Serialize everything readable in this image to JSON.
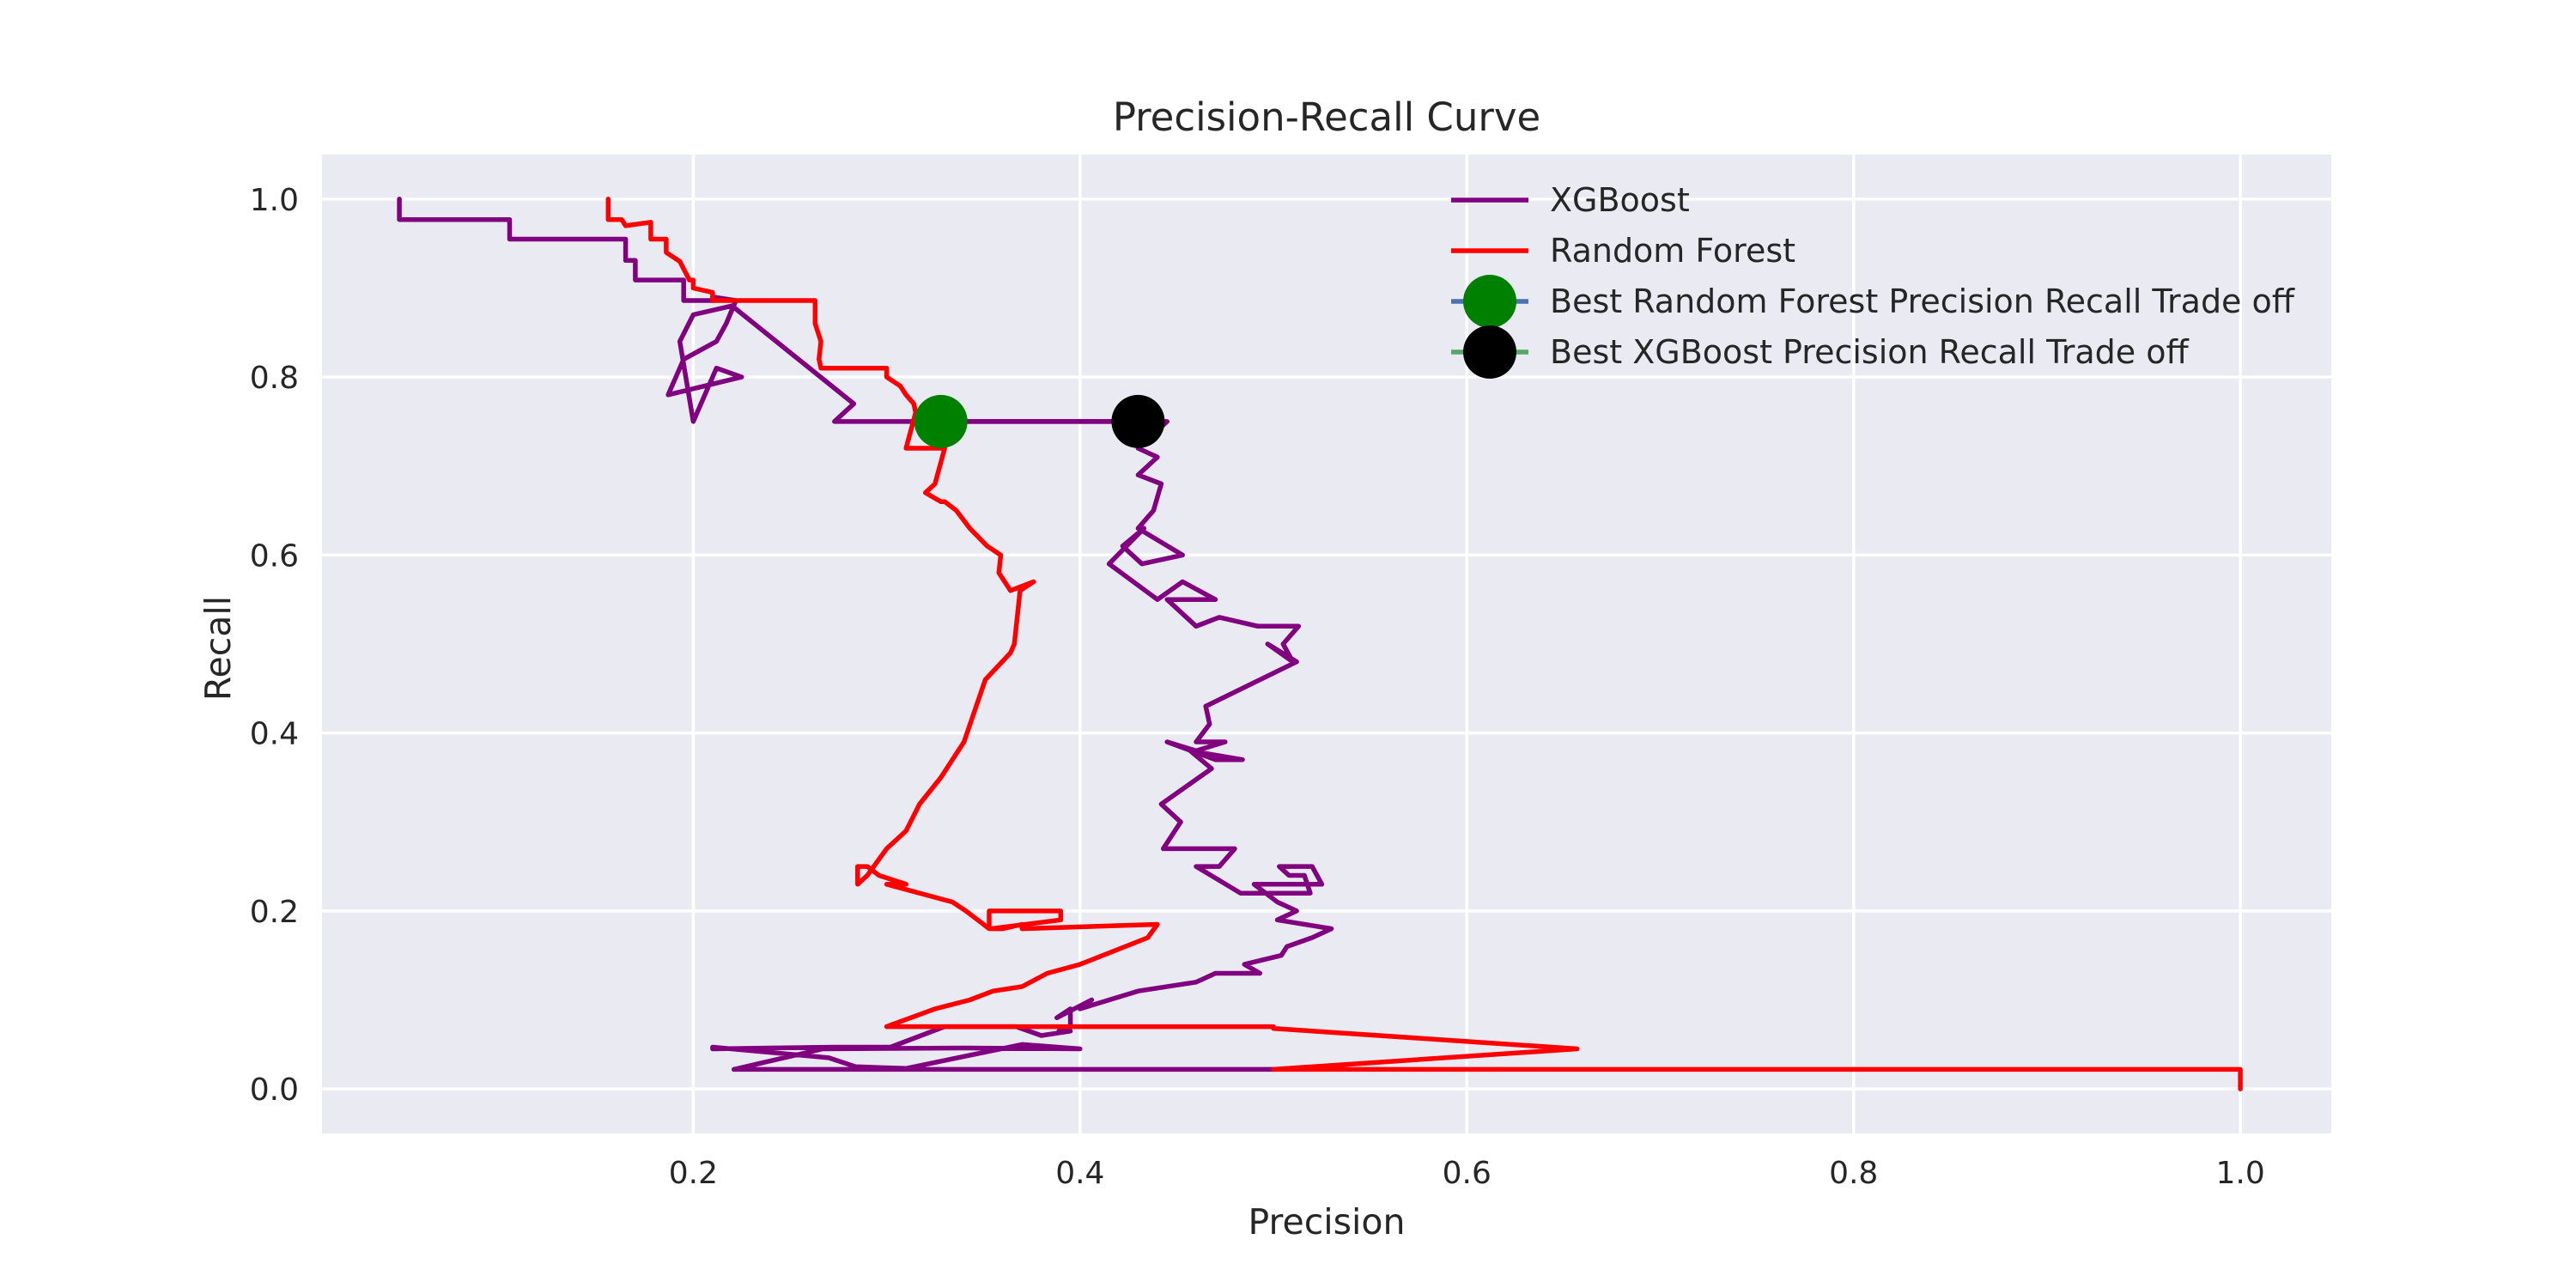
{
  "chart_data": {
    "type": "line",
    "title": "Precision-Recall Curve",
    "xlabel": "Precision",
    "ylabel": "Recall",
    "xlim": [
      0.008,
      1.047
    ],
    "ylim": [
      -0.05,
      1.05
    ],
    "xticks": [
      0.2,
      0.4,
      0.6,
      0.8,
      1.0
    ],
    "xtick_labels": [
      "0.2",
      "0.4",
      "0.6",
      "0.8",
      "1.0"
    ],
    "yticks": [
      0.0,
      0.2,
      0.4,
      0.6,
      0.8,
      1.0
    ],
    "ytick_labels": [
      "0.0",
      "0.2",
      "0.4",
      "0.6",
      "0.8",
      "1.0"
    ],
    "grid": true,
    "legend_position": "top-right",
    "background": "#eaeaf2",
    "series": [
      {
        "name": "XGBoost",
        "color": "#800080",
        "x": [
          0.048,
          0.048,
          0.105,
          0.105,
          0.165,
          0.165,
          0.17,
          0.17,
          0.195,
          0.195,
          0.21,
          0.21,
          0.222,
          0.217,
          0.212,
          0.195,
          0.187,
          0.225,
          0.212,
          0.2,
          0.193,
          0.2,
          0.22,
          0.283,
          0.273,
          0.43,
          0.445,
          0.43,
          0.44,
          0.43,
          0.442,
          0.438,
          0.43,
          0.453,
          0.432,
          0.422,
          0.433,
          0.415,
          0.44,
          0.453,
          0.47,
          0.445,
          0.46,
          0.472,
          0.492,
          0.513,
          0.505,
          0.51,
          0.497,
          0.512,
          0.512,
          0.465,
          0.467,
          0.46,
          0.475,
          0.46,
          0.445,
          0.47,
          0.484,
          0.457,
          0.468,
          0.442,
          0.452,
          0.443,
          0.48,
          0.472,
          0.46,
          0.483,
          0.519,
          0.516,
          0.508,
          0.503,
          0.52,
          0.525,
          0.49,
          0.502,
          0.512,
          0.502,
          0.53,
          0.52,
          0.507,
          0.504,
          0.485,
          0.493,
          0.47,
          0.46,
          0.43,
          0.4,
          0.406,
          0.388,
          0.395,
          0.395,
          0.389,
          0.395,
          0.38,
          0.367,
          0.33,
          0.302,
          0.273,
          0.21,
          0.21,
          0.27,
          0.284,
          0.31,
          0.37,
          0.4,
          0.4,
          0.34,
          0.267,
          0.221,
          0.25,
          0.5
        ],
        "y": [
          1.0,
          0.977,
          0.977,
          0.955,
          0.955,
          0.931,
          0.931,
          0.909,
          0.909,
          0.886,
          0.886,
          0.89,
          0.886,
          0.86,
          0.84,
          0.82,
          0.78,
          0.8,
          0.81,
          0.75,
          0.84,
          0.87,
          0.88,
          0.77,
          0.75,
          0.75,
          0.75,
          0.72,
          0.71,
          0.69,
          0.68,
          0.65,
          0.63,
          0.6,
          0.59,
          0.61,
          0.63,
          0.59,
          0.55,
          0.57,
          0.55,
          0.55,
          0.52,
          0.53,
          0.52,
          0.52,
          0.5,
          0.48,
          0.5,
          0.48,
          0.48,
          0.43,
          0.41,
          0.39,
          0.39,
          0.38,
          0.39,
          0.37,
          0.37,
          0.38,
          0.36,
          0.32,
          0.3,
          0.27,
          0.27,
          0.25,
          0.25,
          0.22,
          0.22,
          0.24,
          0.24,
          0.25,
          0.25,
          0.23,
          0.23,
          0.21,
          0.2,
          0.19,
          0.18,
          0.17,
          0.16,
          0.15,
          0.14,
          0.13,
          0.13,
          0.12,
          0.11,
          0.09,
          0.1,
          0.08,
          0.09,
          0.07,
          0.065,
          0.065,
          0.06,
          0.07,
          0.07,
          0.047,
          0.047,
          0.045,
          0.047,
          0.035,
          0.025,
          0.023,
          0.05,
          0.045,
          0.045,
          0.046,
          0.045,
          0.022,
          0.022,
          0.022
        ]
      },
      {
        "name": "Random Forest",
        "color": "#ff0000",
        "x": [
          0.156,
          0.156,
          0.163,
          0.165,
          0.178,
          0.178,
          0.186,
          0.186,
          0.193,
          0.198,
          0.2,
          0.2,
          0.21,
          0.21,
          0.263,
          0.263,
          0.266,
          0.265,
          0.266,
          0.27,
          0.3,
          0.3,
          0.307,
          0.31,
          0.314,
          0.315,
          0.31,
          0.33,
          0.325,
          0.32,
          0.328,
          0.33,
          0.336,
          0.343,
          0.352,
          0.359,
          0.358,
          0.364,
          0.376,
          0.369,
          0.366,
          0.364,
          0.351,
          0.34,
          0.328,
          0.317,
          0.31,
          0.3,
          0.29,
          0.285,
          0.285,
          0.29,
          0.296,
          0.31,
          0.3,
          0.334,
          0.341,
          0.353,
          0.353,
          0.39,
          0.39,
          0.354,
          0.36,
          0.37,
          0.37,
          0.44,
          0.435,
          0.4,
          0.383,
          0.37,
          0.355,
          0.343,
          0.325,
          0.3,
          0.48,
          0.5,
          0.5,
          0.657,
          0.5,
          1.0,
          1.0,
          1.0
        ],
        "y": [
          1.0,
          0.977,
          0.977,
          0.97,
          0.974,
          0.955,
          0.955,
          0.94,
          0.93,
          0.909,
          0.909,
          0.9,
          0.895,
          0.886,
          0.886,
          0.86,
          0.84,
          0.82,
          0.81,
          0.81,
          0.81,
          0.8,
          0.79,
          0.78,
          0.77,
          0.76,
          0.72,
          0.72,
          0.68,
          0.67,
          0.66,
          0.66,
          0.65,
          0.63,
          0.61,
          0.6,
          0.58,
          0.56,
          0.57,
          0.56,
          0.5,
          0.49,
          0.46,
          0.39,
          0.35,
          0.32,
          0.29,
          0.27,
          0.24,
          0.23,
          0.25,
          0.25,
          0.24,
          0.23,
          0.23,
          0.21,
          0.2,
          0.18,
          0.2,
          0.2,
          0.19,
          0.18,
          0.18,
          0.185,
          0.18,
          0.185,
          0.17,
          0.14,
          0.13,
          0.115,
          0.11,
          0.1,
          0.09,
          0.07,
          0.07,
          0.07,
          0.068,
          0.045,
          0.022,
          0.022,
          0.01,
          0.0
        ]
      }
    ],
    "markers": [
      {
        "name": "Best Random Forest Precision Recall Trade off",
        "x": 0.328,
        "y": 0.75,
        "color": "#008000",
        "line_color": "#4c72b0"
      },
      {
        "name": "Best XGBoost Precision Recall Trade off",
        "x": 0.43,
        "y": 0.75,
        "color": "#000000",
        "line_color": "#55a868"
      }
    ],
    "connector": {
      "from_x": 0.328,
      "to_x": 0.43,
      "y": 0.75,
      "color": "#800080"
    }
  }
}
